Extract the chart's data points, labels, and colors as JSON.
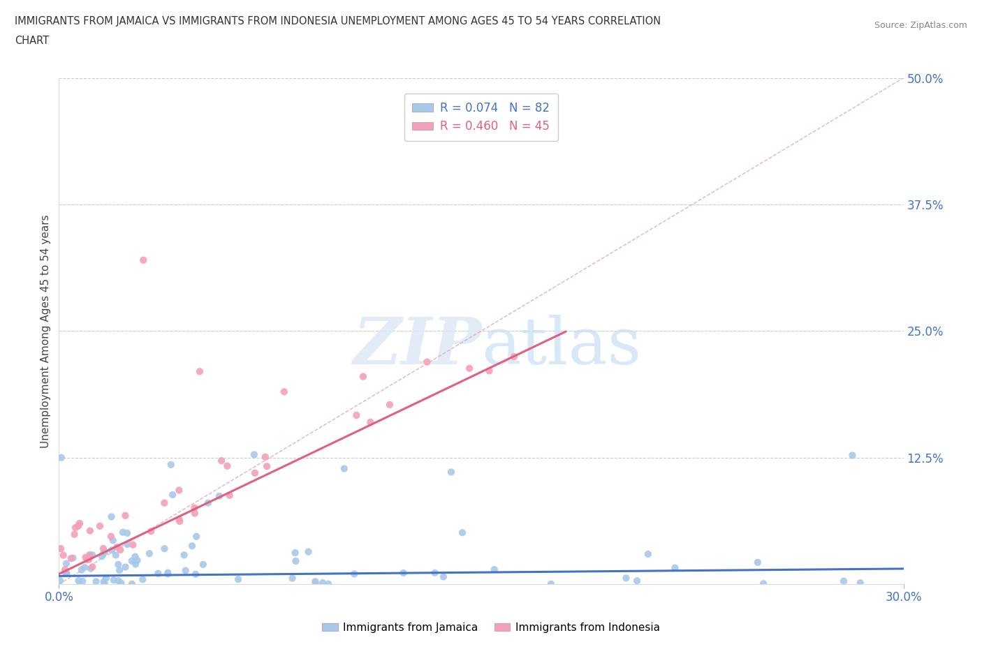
{
  "title_line1": "IMMIGRANTS FROM JAMAICA VS IMMIGRANTS FROM INDONESIA UNEMPLOYMENT AMONG AGES 45 TO 54 YEARS CORRELATION",
  "title_line2": "CHART",
  "source_text": "Source: ZipAtlas.com",
  "ylabel": "Unemployment Among Ages 45 to 54 years",
  "xlim": [
    0.0,
    0.3
  ],
  "ylim": [
    0.0,
    0.5
  ],
  "color_jamaica": "#a8c8e8",
  "color_indonesia": "#f4a0b8",
  "color_jamaica_line": "#4472c4",
  "color_indonesia_line": "#e06080",
  "color_diagonal": "#e8b0b8",
  "R_jamaica": 0.074,
  "N_jamaica": 82,
  "R_indonesia": 0.46,
  "N_indonesia": 45
}
